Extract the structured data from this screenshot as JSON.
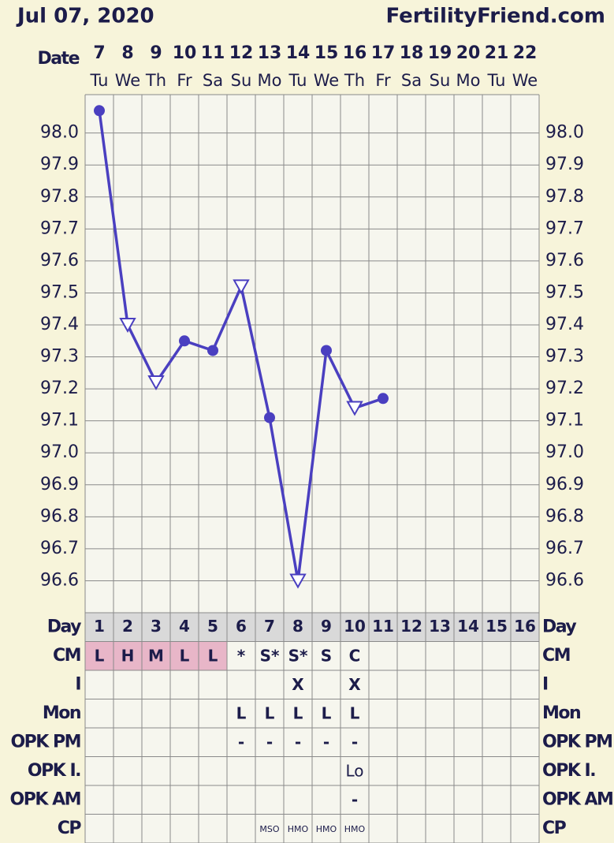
{
  "header": {
    "date": "Jul 07, 2020",
    "site": "FertilityFriend.com"
  },
  "chart_data": {
    "type": "line",
    "x_label": "Date",
    "categories": [
      "7",
      "8",
      "9",
      "10",
      "11",
      "12",
      "13",
      "14",
      "15",
      "16",
      "17",
      "18",
      "19",
      "20",
      "21",
      "22"
    ],
    "weekdays": [
      "Tu",
      "We",
      "Th",
      "Fr",
      "Sa",
      "Su",
      "Mo",
      "Tu",
      "We",
      "Th",
      "Fr",
      "Sa",
      "Su",
      "Mo",
      "Tu",
      "We"
    ],
    "values": [
      98.07,
      97.4,
      97.22,
      97.35,
      97.32,
      97.52,
      97.11,
      96.6,
      97.32,
      97.14,
      97.17,
      null,
      null,
      null,
      null,
      null
    ],
    "markers": [
      "circle",
      "triangle",
      "triangle",
      "circle",
      "circle",
      "triangle",
      "circle",
      "triangle",
      "circle",
      "triangle",
      "circle",
      null,
      null,
      null,
      null,
      null
    ],
    "color": "#4a3fc0",
    "ylim": [
      96.5,
      98.12
    ],
    "yticks": [
      {
        "value": 98,
        "label": "98.0"
      },
      97.9,
      97.8,
      97.7,
      97.6,
      97.5,
      97.4,
      97.3,
      97.2,
      97.1,
      {
        "value": 97,
        "label": "97.0"
      },
      96.9,
      96.8,
      96.7,
      96.6
    ],
    "grid": true
  },
  "table": {
    "rows": [
      {
        "label": "Day",
        "cells": [
          "1",
          "2",
          "3",
          "4",
          "5",
          "6",
          "7",
          "8",
          "9",
          "10",
          "11",
          "12",
          "13",
          "14",
          "15",
          "16"
        ],
        "fill": "#d9d9d9"
      },
      {
        "label": "CM",
        "cells": [
          "L",
          "H",
          "M",
          "L",
          "L",
          "*",
          "S*",
          "S*",
          "S",
          "C",
          null,
          null,
          null,
          null,
          null,
          null
        ],
        "cell_colors": [
          "#e8b6c8",
          "#e8b6c8",
          "#e8b6c8",
          "#e8b6c8",
          "#e8b6c8",
          null,
          null,
          null,
          null,
          null,
          null,
          null,
          null,
          null,
          null,
          null
        ]
      },
      {
        "label": "I",
        "cells": [
          null,
          null,
          null,
          null,
          null,
          null,
          null,
          "X",
          null,
          "X",
          null,
          null,
          null,
          null,
          null,
          null
        ]
      },
      {
        "label": "Mon",
        "cells": [
          null,
          null,
          null,
          null,
          null,
          "L",
          "L",
          "L",
          "L",
          "L",
          null,
          null,
          null,
          null,
          null,
          null
        ]
      },
      {
        "label": "OPK PM",
        "cells": [
          null,
          null,
          null,
          null,
          null,
          "-",
          "-",
          "-",
          "-",
          "-",
          null,
          null,
          null,
          null,
          null,
          null
        ]
      },
      {
        "label": "OPK I.",
        "cells": [
          null,
          null,
          null,
          null,
          null,
          null,
          null,
          null,
          null,
          "Lo",
          null,
          null,
          null,
          null,
          null,
          null
        ]
      },
      {
        "label": "OPK AM",
        "cells": [
          null,
          null,
          null,
          null,
          null,
          null,
          null,
          null,
          null,
          "-",
          null,
          null,
          null,
          null,
          null,
          null
        ]
      },
      {
        "label": "CP",
        "cells": [
          null,
          null,
          null,
          null,
          null,
          null,
          "MSO",
          "HMO",
          "HMO",
          "HMO",
          null,
          null,
          null,
          null,
          null,
          null
        ]
      }
    ]
  }
}
